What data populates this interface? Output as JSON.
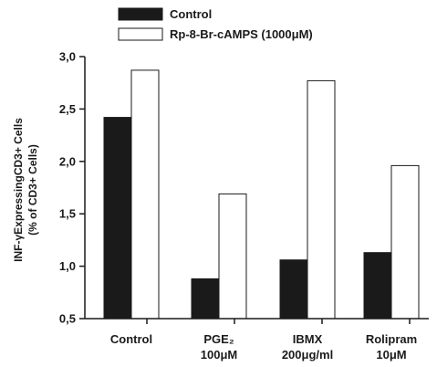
{
  "chart_data": {
    "type": "bar",
    "categories": [
      {
        "line1": "Control",
        "line2": ""
      },
      {
        "line1": "PGE₂",
        "line2": "100μM"
      },
      {
        "line1": "IBMX",
        "line2": "200μg/ml"
      },
      {
        "line1": "Rolipram",
        "line2": "10μM"
      }
    ],
    "series": [
      {
        "name": "Control",
        "color": "#1a1a1a",
        "values": [
          2.42,
          0.88,
          1.06,
          1.13
        ]
      },
      {
        "name": "Rp-8-Br-cAMPS (1000μM)",
        "color": "#ffffff",
        "values": [
          2.87,
          1.69,
          2.77,
          1.96
        ]
      }
    ],
    "ylabel_line1": "INF-γExpressingCD3+ Cells",
    "ylabel_line2": "(% of CD3+ Cells)",
    "ylim": [
      0.5,
      3.0
    ],
    "yticks": [
      0.5,
      1.0,
      1.5,
      2.0,
      2.5,
      3.0
    ],
    "ytick_labels": [
      "0,5",
      "1,0",
      "1,5",
      "2,0",
      "2,5",
      "3,0"
    ],
    "legend_position": "top",
    "grid": false
  }
}
